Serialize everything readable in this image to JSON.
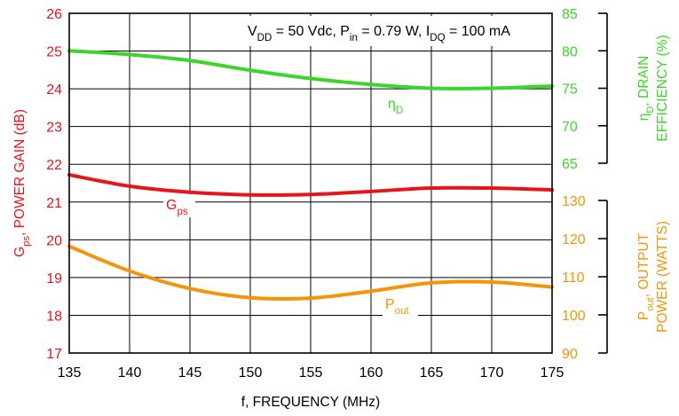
{
  "chart_data": {
    "type": "line",
    "title": "",
    "conditions": {
      "parts": [
        {
          "t": "V"
        },
        {
          "t": "DD",
          "sub": true
        },
        {
          "t": " = 50 Vdc, P"
        },
        {
          "t": "in",
          "sub": true
        },
        {
          "t": " = 0.79 W, I"
        },
        {
          "t": "DQ",
          "sub": true
        },
        {
          "t": " = 100 mA"
        }
      ]
    },
    "x_axis": {
      "label": "f, FREQUENCY (MHz)",
      "range": [
        135,
        175
      ],
      "ticks": [
        "135",
        "140",
        "145",
        "150",
        "155",
        "160",
        "165",
        "170",
        "175"
      ],
      "grid": true
    },
    "y_left": {
      "label_parts": [
        {
          "t": "G"
        },
        {
          "t": "ps",
          "sub": true
        },
        {
          "t": ", POWER GAIN (dB)"
        }
      ],
      "range": [
        17,
        26
      ],
      "ticks": [
        "17",
        "18",
        "19",
        "20",
        "21",
        "22",
        "23",
        "24",
        "25",
        "26"
      ],
      "color": "#e8141b"
    },
    "y_right_upper": {
      "label_line1_parts": [
        {
          "t": "η"
        },
        {
          "t": "D",
          "sub": true
        },
        {
          "t": ", DRAIN"
        }
      ],
      "label_line2": "EFFICIENCY (%)",
      "range": [
        65,
        85
      ],
      "ticks": [
        "65",
        "70",
        "75",
        "80",
        "85"
      ],
      "color": "#3cd62a"
    },
    "y_right_lower": {
      "label_line1_parts": [
        {
          "t": "P"
        },
        {
          "t": "out",
          "sub": true
        },
        {
          "t": ", OUTPUT"
        }
      ],
      "label_line2": "POWER (WATTS)",
      "range": [
        90,
        130
      ],
      "ticks": [
        "90",
        "100",
        "110",
        "120",
        "130"
      ],
      "color": "#f5940a"
    },
    "series": [
      {
        "name_parts": [
          {
            "t": "η"
          },
          {
            "t": "D",
            "sub": true
          }
        ],
        "axis": "y_right_upper",
        "color": "#3cd62a",
        "x": [
          135,
          140,
          145,
          150,
          155,
          160,
          165,
          170,
          175
        ],
        "y": [
          80.0,
          79.5,
          78.7,
          77.4,
          76.3,
          75.5,
          75.0,
          75.0,
          75.3
        ]
      },
      {
        "name_parts": [
          {
            "t": "G"
          },
          {
            "t": "ps",
            "sub": true
          }
        ],
        "axis": "y_left",
        "color": "#e8141b",
        "x": [
          135,
          140,
          145,
          150,
          155,
          160,
          165,
          170,
          175
        ],
        "y": [
          21.72,
          21.42,
          21.26,
          21.19,
          21.2,
          21.28,
          21.37,
          21.37,
          21.32
        ]
      },
      {
        "name_parts": [
          {
            "t": "P"
          },
          {
            "t": "out",
            "sub": true
          }
        ],
        "axis": "y_right_lower",
        "color": "#f5940a",
        "x": [
          135,
          140,
          145,
          150,
          155,
          160,
          165,
          170,
          175
        ],
        "y": [
          118.0,
          111.5,
          106.9,
          104.5,
          104.4,
          106.2,
          108.4,
          108.6,
          107.3
        ]
      }
    ]
  }
}
